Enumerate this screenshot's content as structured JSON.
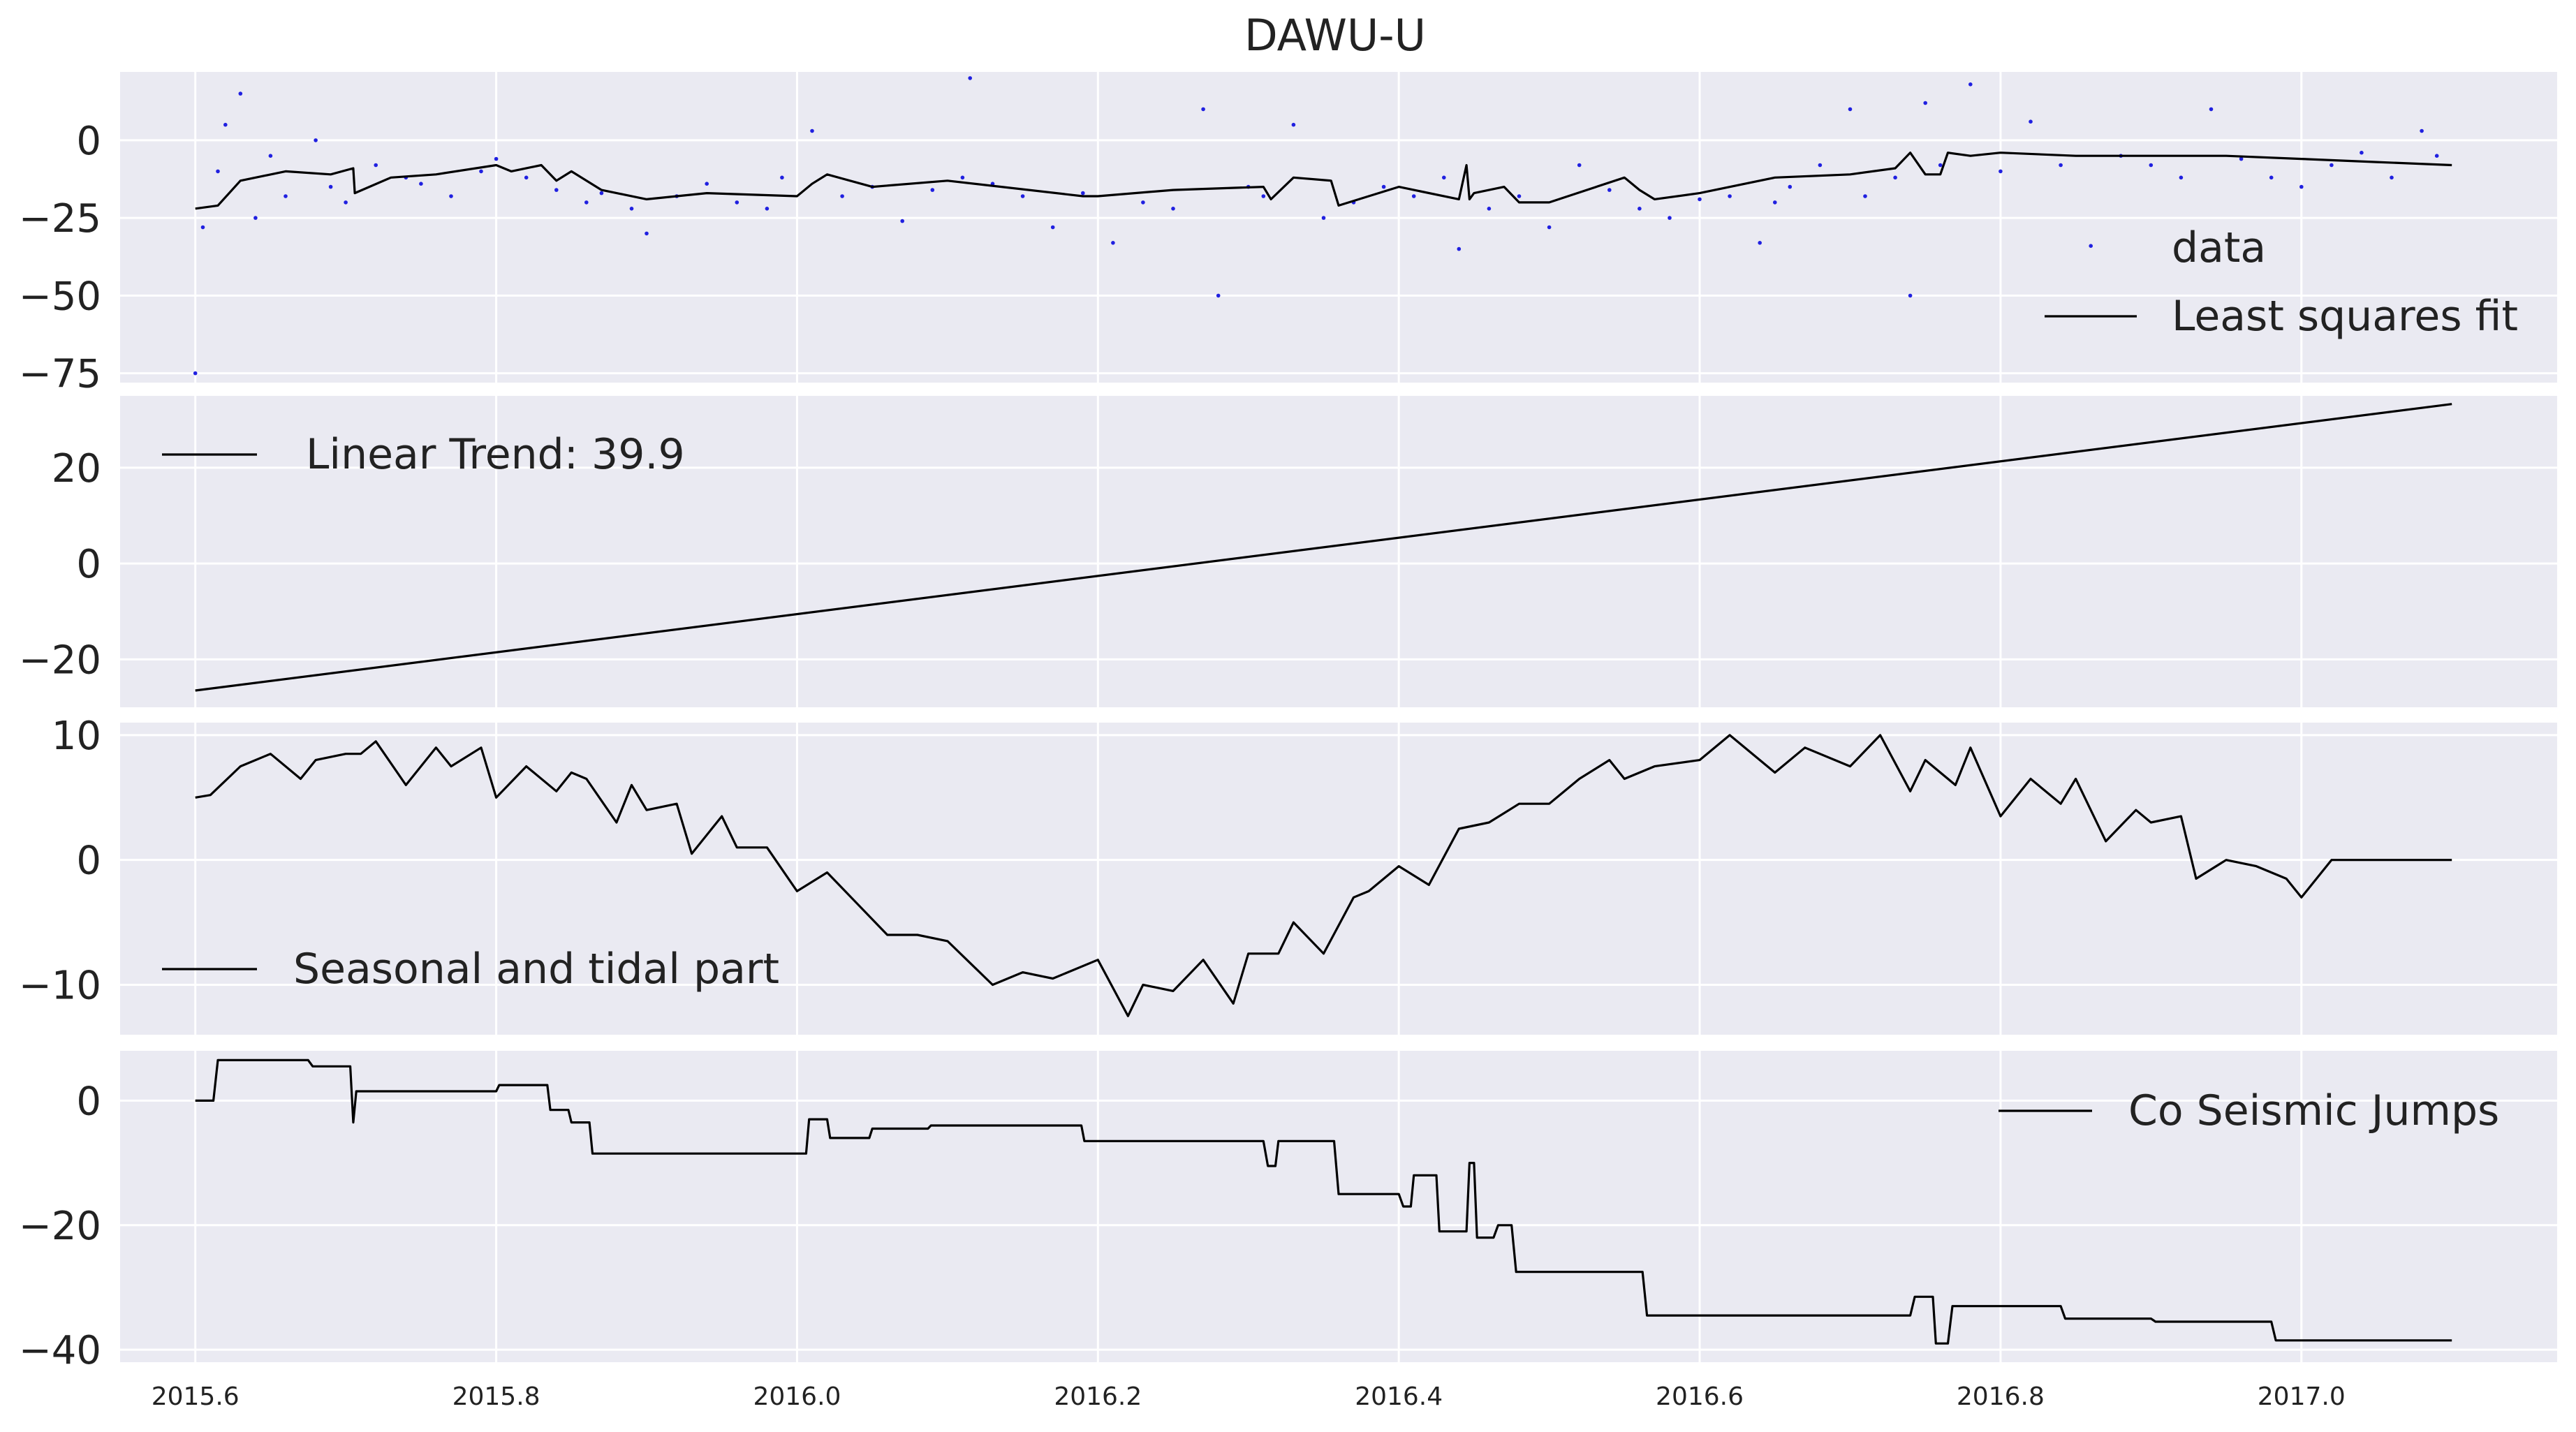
{
  "figure_title": "DAWU-U",
  "colors": {
    "panel_bg": "#eaeaf2",
    "grid": "#ffffff",
    "fit_line": "#000000",
    "data_dots": "#2020e0",
    "text": "#222222"
  },
  "x_axis": {
    "ticks": [
      2015.6,
      2015.8,
      2016.0,
      2016.2,
      2016.4,
      2016.6,
      2016.8,
      2017.0
    ],
    "tick_labels": [
      "2015.6",
      "2015.8",
      "2016.0",
      "2016.2",
      "2016.4",
      "2016.6",
      "2016.8",
      "2017.0"
    ],
    "xlim": [
      2015.55,
      2017.17
    ]
  },
  "chart_data": [
    {
      "type": "scatter+line",
      "title": "DAWU-U",
      "ylim": [
        -78,
        22
      ],
      "yticks": [
        0,
        -25,
        -50,
        -75
      ],
      "ytick_labels": [
        "0",
        "−25",
        "−50",
        "−75"
      ],
      "legend": {
        "placement": "right",
        "entries": [
          "data",
          "Least squares fit"
        ]
      },
      "series": [
        {
          "name": "data",
          "kind": "points",
          "x": [
            2015.6,
            2015.605,
            2015.615,
            2015.62,
            2015.63,
            2015.64,
            2015.65,
            2015.66,
            2015.68,
            2015.69,
            2015.7,
            2015.72,
            2015.74,
            2015.75,
            2015.77,
            2015.79,
            2015.8,
            2015.82,
            2015.84,
            2015.86,
            2015.87,
            2015.89,
            2015.9,
            2015.92,
            2015.94,
            2015.96,
            2015.98,
            2015.99,
            2016.01,
            2016.03,
            2016.05,
            2016.07,
            2016.09,
            2016.11,
            2016.115,
            2016.13,
            2016.15,
            2016.17,
            2016.19,
            2016.21,
            2016.23,
            2016.25,
            2016.27,
            2016.28,
            2016.3,
            2016.31,
            2016.33,
            2016.35,
            2016.37,
            2016.39,
            2016.41,
            2016.43,
            2016.44,
            2016.46,
            2016.48,
            2016.5,
            2016.52,
            2016.54,
            2016.56,
            2016.58,
            2016.6,
            2016.62,
            2016.64,
            2016.65,
            2016.66,
            2016.68,
            2016.7,
            2016.71,
            2016.73,
            2016.74,
            2016.75,
            2016.76,
            2016.78,
            2016.8,
            2016.82,
            2016.84,
            2016.86,
            2016.88,
            2016.9,
            2016.92,
            2016.94,
            2016.96,
            2016.98,
            2017.0,
            2017.02,
            2017.04,
            2017.06,
            2017.08,
            2017.09
          ],
          "y": [
            -75,
            -28,
            -10,
            5,
            15,
            -25,
            -5,
            -18,
            0,
            -15,
            -20,
            -8,
            -12,
            -14,
            -18,
            -10,
            -6,
            -12,
            -16,
            -20,
            -17,
            -22,
            -30,
            -18,
            -14,
            -20,
            -22,
            -12,
            3,
            -18,
            -15,
            -26,
            -16,
            -12,
            20,
            -14,
            -18,
            -28,
            -17,
            -33,
            -20,
            -22,
            10,
            -50,
            -15,
            -18,
            5,
            -25,
            -20,
            -15,
            -18,
            -12,
            -35,
            -22,
            -18,
            -28,
            -8,
            -16,
            -22,
            -25,
            -19,
            -18,
            -33,
            -20,
            -15,
            -8,
            10,
            -18,
            -12,
            -50,
            12,
            -8,
            18,
            -10,
            6,
            -8,
            -34,
            -5,
            -8,
            -12,
            10,
            -6,
            -12,
            -15,
            -8,
            -4,
            -12,
            3,
            -5
          ]
        },
        {
          "name": "Least squares fit",
          "kind": "line",
          "x": [
            2015.6,
            2015.615,
            2015.63,
            2015.66,
            2015.69,
            2015.705,
            2015.706,
            2015.73,
            2015.76,
            2015.8,
            2015.81,
            2015.83,
            2015.84,
            2015.85,
            2015.87,
            2015.9,
            2015.94,
            2016.0,
            2016.01,
            2016.02,
            2016.05,
            2016.1,
            2016.19,
            2016.2,
            2016.25,
            2016.31,
            2016.315,
            2016.33,
            2016.355,
            2016.36,
            2016.4,
            2016.44,
            2016.445,
            2016.447,
            2016.45,
            2016.47,
            2016.48,
            2016.5,
            2016.55,
            2016.56,
            2016.57,
            2016.6,
            2016.65,
            2016.7,
            2016.73,
            2016.74,
            2016.75,
            2016.76,
            2016.765,
            2016.78,
            2016.8,
            2016.85,
            2016.9,
            2016.95,
            2017.0,
            2017.05,
            2017.1
          ],
          "y": [
            -22,
            -21,
            -13,
            -10,
            -11,
            -9,
            -17,
            -12,
            -11,
            -8,
            -10,
            -8,
            -13,
            -10,
            -16,
            -19,
            -17,
            -18,
            -14,
            -11,
            -15,
            -13,
            -18,
            -18,
            -16,
            -15,
            -19,
            -12,
            -13,
            -21,
            -15,
            -19,
            -8,
            -19,
            -17,
            -15,
            -20,
            -20,
            -12,
            -16,
            -19,
            -17,
            -12,
            -11,
            -9,
            -4,
            -11,
            -11,
            -4,
            -5,
            -4,
            -5,
            -5,
            -5,
            -6,
            -7,
            -8
          ]
        }
      ]
    },
    {
      "type": "line",
      "ylim": [
        -30,
        35
      ],
      "yticks": [
        20,
        0,
        -20
      ],
      "ytick_labels": [
        "20",
        "0",
        "−20"
      ],
      "legend": {
        "placement": "upper left",
        "entries": [
          "Linear Trend: 39.9"
        ]
      },
      "series": [
        {
          "name": "Linear Trend: 39.9",
          "x": [
            2015.6,
            2017.1
          ],
          "y": [
            -26.5,
            33.3
          ]
        }
      ]
    },
    {
      "type": "line",
      "ylim": [
        -14,
        11
      ],
      "yticks": [
        10,
        0,
        -10
      ],
      "ytick_labels": [
        "10",
        "0",
        "−10"
      ],
      "legend": {
        "placement": "lower left",
        "entries": [
          "Seasonal and tidal part"
        ]
      },
      "series": [
        {
          "name": "Seasonal and tidal part",
          "x": [
            2015.6,
            2015.61,
            2015.63,
            2015.65,
            2015.67,
            2015.68,
            2015.7,
            2015.71,
            2015.72,
            2015.74,
            2015.76,
            2015.77,
            2015.79,
            2015.8,
            2015.82,
            2015.84,
            2015.85,
            2015.86,
            2015.88,
            2015.89,
            2015.9,
            2015.92,
            2015.93,
            2015.95,
            2015.96,
            2015.98,
            2016.0,
            2016.02,
            2016.04,
            2016.06,
            2016.08,
            2016.1,
            2016.13,
            2016.15,
            2016.17,
            2016.2,
            2016.22,
            2016.23,
            2016.25,
            2016.27,
            2016.29,
            2016.3,
            2016.32,
            2016.33,
            2016.35,
            2016.37,
            2016.38,
            2016.4,
            2016.42,
            2016.44,
            2016.46,
            2016.48,
            2016.5,
            2016.52,
            2016.54,
            2016.55,
            2016.57,
            2016.6,
            2016.62,
            2016.65,
            2016.67,
            2016.7,
            2016.72,
            2016.74,
            2016.75,
            2016.77,
            2016.78,
            2016.8,
            2016.82,
            2016.84,
            2016.85,
            2016.87,
            2016.89,
            2016.9,
            2016.92,
            2016.93,
            2016.95,
            2016.97,
            2016.99,
            2017.0,
            2017.02,
            2017.04,
            2017.06,
            2017.08,
            2017.1
          ],
          "y": [
            5,
            5.2,
            7.5,
            8.5,
            6.5,
            8.0,
            8.5,
            8.5,
            9.5,
            6.0,
            9.0,
            7.5,
            9.0,
            5.0,
            7.5,
            5.5,
            7.0,
            6.5,
            3.0,
            6.0,
            4.0,
            4.5,
            0.5,
            3.5,
            1.0,
            1.0,
            -2.5,
            -1.0,
            -3.5,
            -6.0,
            -6.0,
            -6.5,
            -10.0,
            -9.0,
            -9.5,
            -8.0,
            -12.5,
            -10.0,
            -10.5,
            -8.0,
            -11.5,
            -7.5,
            -7.5,
            -5.0,
            -7.5,
            -3.0,
            -2.5,
            -0.5,
            -2.0,
            2.5,
            3.0,
            4.5,
            4.5,
            6.5,
            8.0,
            6.5,
            7.5,
            8.0,
            10.0,
            7.0,
            9.0,
            7.5,
            10.0,
            5.5,
            8.0,
            6.0,
            9.0,
            3.5,
            6.5,
            4.5,
            6.5,
            1.5,
            4.0,
            3.0,
            3.5,
            -1.5,
            0.0,
            -0.5,
            -1.5,
            -3.0,
            0,
            0,
            0,
            0,
            0
          ]
        }
      ]
    },
    {
      "type": "line",
      "ylim": [
        -42,
        8
      ],
      "yticks": [
        0,
        -20,
        -40
      ],
      "ytick_labels": [
        "0",
        "−20",
        "−40"
      ],
      "legend": {
        "placement": "upper right",
        "entries": [
          "Co Seismic Jumps"
        ]
      },
      "series": [
        {
          "name": "Co Seismic Jumps",
          "x": [
            2015.6,
            2015.612,
            2015.615,
            2015.675,
            2015.678,
            2015.703,
            2015.705,
            2015.707,
            2015.8,
            2015.802,
            2015.834,
            2015.836,
            2015.848,
            2015.85,
            2015.862,
            2015.864,
            2016.006,
            2016.008,
            2016.02,
            2016.022,
            2016.048,
            2016.05,
            2016.087,
            2016.089,
            2016.189,
            2016.191,
            2016.31,
            2016.313,
            2016.318,
            2016.32,
            2016.357,
            2016.36,
            2016.4,
            2016.403,
            2016.408,
            2016.41,
            2016.425,
            2016.427,
            2016.445,
            2016.447,
            2016.45,
            2016.452,
            2016.463,
            2016.466,
            2016.475,
            2016.478,
            2016.562,
            2016.565,
            2016.74,
            2016.743,
            2016.755,
            2016.757,
            2016.765,
            2016.768,
            2016.84,
            2016.843,
            2016.9,
            2016.903,
            2016.98,
            2016.983,
            2017.1
          ],
          "y": [
            0,
            0,
            6.5,
            6.5,
            5.5,
            5.5,
            -3.5,
            1.5,
            1.5,
            2.5,
            2.5,
            -1.5,
            -1.5,
            -3.5,
            -3.5,
            -8.5,
            -8.5,
            -3.0,
            -3.0,
            -6.0,
            -6.0,
            -4.5,
            -4.5,
            -4.0,
            -4.0,
            -6.5,
            -6.5,
            -10.5,
            -10.5,
            -6.5,
            -6.5,
            -15.0,
            -15.0,
            -17.0,
            -17.0,
            -12.0,
            -12.0,
            -21.0,
            -21.0,
            -10.0,
            -10.0,
            -22.0,
            -22.0,
            -20.0,
            -20.0,
            -27.5,
            -27.5,
            -34.5,
            -34.5,
            -31.5,
            -31.5,
            -39.0,
            -39.0,
            -33.0,
            -33.0,
            -35.0,
            -35.0,
            -35.5,
            -35.5,
            -38.5,
            -38.5
          ]
        }
      ]
    }
  ]
}
